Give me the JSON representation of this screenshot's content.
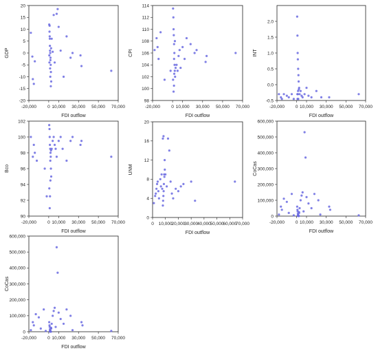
{
  "chart_data": [
    {
      "type": "scatter",
      "xlabel": "FDI outflow",
      "ylabel": "GDP",
      "xlim": [
        -20000,
        70000
      ],
      "ylim": [
        -20,
        20
      ],
      "xticks": [
        -20000,
        0,
        10000,
        30000,
        50000,
        70000
      ],
      "xtick_labels": [
        "-20,000",
        "0",
        "10,000",
        "30,000",
        "50,000",
        "70,000"
      ],
      "yticks": [
        -20,
        -15,
        -10,
        -5,
        0,
        5,
        10,
        15,
        20
      ],
      "ytick_labels": [
        "-20",
        "-15",
        "-10",
        "-5",
        "0",
        "5",
        "10",
        "15",
        "20"
      ],
      "x": [
        -18000,
        -16500,
        -16000,
        -15000,
        -14000,
        500,
        800,
        1000,
        1200,
        1500,
        1800,
        2000,
        2200,
        2500,
        900,
        1100,
        1300,
        1700,
        1400,
        1600,
        2100,
        2400,
        600,
        700,
        5000,
        8000,
        9000,
        10000,
        12000,
        15000,
        18000,
        22000,
        24000,
        32000,
        33000,
        63000,
        3000,
        4000,
        6000
      ],
      "y": [
        8.5,
        -1.5,
        -11,
        -13,
        -3.5,
        12,
        9,
        7,
        3,
        0,
        -2,
        -5,
        -8,
        -12,
        11.5,
        6,
        1,
        -3,
        -6.5,
        -10,
        -14,
        2,
        -1,
        -4,
        16,
        16.5,
        18.5,
        11,
        1,
        -10,
        7,
        -2,
        0,
        -1,
        -5.5,
        -7.5,
        6,
        0.5,
        -4
      ],
      "grid": false
    },
    {
      "type": "scatter",
      "xlabel": "FDI outflow",
      "ylabel": "CPI",
      "xlim": [
        -20000,
        70000
      ],
      "ylim": [
        98,
        114
      ],
      "xticks": [
        -20000,
        0,
        10000,
        30000,
        50000,
        70000
      ],
      "xtick_labels": [
        "-20,000",
        "0",
        "10,000",
        "30,000",
        "50,000",
        "70,000"
      ],
      "yticks": [
        98,
        100,
        102,
        104,
        106,
        108,
        110,
        112,
        114
      ],
      "ytick_labels": [
        "98",
        "100",
        "102",
        "104",
        "106",
        "108",
        "110",
        "112",
        "114"
      ],
      "x": [
        -18000,
        -16000,
        -15000,
        -14000,
        -12000,
        -8000,
        -2000,
        500,
        800,
        1000,
        1200,
        1500,
        1800,
        2000,
        2200,
        2500,
        1000,
        1400,
        1700,
        2300,
        3000,
        4000,
        5000,
        6000,
        7000,
        8000,
        10000,
        12000,
        14000,
        18000,
        22000,
        24000,
        33000,
        34000,
        63000,
        500,
        1500
      ],
      "y": [
        106.5,
        108.5,
        107,
        105,
        109.5,
        101.5,
        103,
        113.5,
        112,
        110,
        109,
        107.5,
        106,
        104,
        103,
        102,
        99.5,
        100.5,
        102.5,
        108,
        103.5,
        104,
        103,
        105.5,
        106.5,
        103.5,
        107,
        105,
        108.5,
        107.5,
        106,
        106.5,
        104.5,
        105.5,
        106,
        101.5,
        105
      ],
      "grid": false
    },
    {
      "type": "scatter",
      "xlabel": "FDI outflow",
      "ylabel": "INT",
      "xlim": [
        -20000,
        70000
      ],
      "ylim": [
        -0.5,
        2.5
      ],
      "xticks": [
        -20000,
        0,
        10000,
        30000,
        50000,
        70000
      ],
      "xtick_labels": [
        "-20,000",
        "0",
        "10,000",
        "30,000",
        "50,000",
        "70,000"
      ],
      "yticks": [
        -0.5,
        0.0,
        0.5,
        1.0,
        1.5,
        2.0
      ],
      "ytick_labels": [
        "-0.5",
        "0.0",
        "0.5",
        "1.0",
        "1.5",
        "2.0"
      ],
      "x": [
        -18000,
        -16000,
        -15000,
        -13000,
        -10000,
        -8000,
        -5000,
        -3000,
        500,
        800,
        1000,
        1200,
        1500,
        1800,
        2000,
        2500,
        3000,
        4000,
        5000,
        6000,
        8000,
        10000,
        12000,
        15000,
        20000,
        25000,
        33000,
        63000,
        1200,
        1400,
        1600,
        2200,
        700,
        900
      ],
      "y": [
        -0.3,
        -0.4,
        -0.45,
        -0.3,
        -0.35,
        -0.4,
        -0.3,
        -0.45,
        2.15,
        1.55,
        1.0,
        0.8,
        0.5,
        0.3,
        0.1,
        -0.1,
        -0.3,
        -0.2,
        -0.35,
        -0.4,
        -0.3,
        -0.1,
        -0.35,
        -0.4,
        -0.2,
        -0.4,
        -0.4,
        -0.3,
        -0.3,
        -0.2,
        -0.45,
        -0.15,
        -0.3,
        -0.45
      ],
      "grid": false
    },
    {
      "type": "scatter",
      "xlabel": "FDI outflow",
      "ylabel": "Bco",
      "xlim": [
        -20000,
        70000
      ],
      "ylim": [
        90,
        102
      ],
      "xticks": [
        -20000,
        0,
        10000,
        30000,
        50000,
        70000
      ],
      "xtick_labels": [
        "-20,000",
        "0",
        "10,000",
        "30,000",
        "50,000",
        "70,000"
      ],
      "yticks": [
        90,
        92,
        94,
        96,
        98,
        100,
        102
      ],
      "ytick_labels": [
        "90",
        "92",
        "94",
        "96",
        "98",
        "100",
        "102"
      ],
      "x": [
        -18000,
        -16000,
        -15000,
        -14000,
        -12000,
        -4000,
        -2000,
        500,
        800,
        1000,
        1200,
        1500,
        1800,
        2000,
        2200,
        2500,
        1000,
        1300,
        1700,
        2300,
        3000,
        4000,
        5000,
        6000,
        7000,
        8000,
        10000,
        12000,
        14000,
        18000,
        22000,
        24000,
        32000,
        33000,
        63000,
        600,
        1600
      ],
      "y": [
        100,
        97.5,
        99,
        98,
        97,
        96,
        92.5,
        101.5,
        101,
        100,
        99,
        98.5,
        98,
        97.5,
        96,
        95,
        91,
        92.5,
        94.5,
        98.3,
        98.5,
        99.5,
        100,
        99,
        98.5,
        97.5,
        99.5,
        100,
        98.5,
        97,
        99.5,
        100,
        99,
        99.5,
        97.5,
        93.5,
        97
      ],
      "grid": false
    },
    {
      "type": "scatter",
      "xlabel": "FDI outflow",
      "ylabel": "UNM",
      "xlim": [
        0,
        70000
      ],
      "ylim": [
        0,
        20
      ],
      "xticks": [
        0,
        10000,
        20000,
        30000,
        40000,
        50000,
        60000,
        70000
      ],
      "xtick_labels": [
        "0",
        "10,000",
        "20,000",
        "30,000",
        "40,000",
        "50,000",
        "60,000",
        "70,000"
      ],
      "yticks": [
        0,
        4,
        8,
        12,
        16,
        20
      ],
      "ytick_labels": [
        "0",
        "4",
        "8",
        "12",
        "16",
        "20"
      ],
      "x": [
        1000,
        2000,
        2500,
        3000,
        3500,
        4000,
        4500,
        5000,
        6000,
        6500,
        7000,
        7500,
        8000,
        8500,
        9000,
        9500,
        8000,
        8200,
        8400,
        8600,
        8800,
        9200,
        9400,
        10000,
        11000,
        12000,
        13000,
        14000,
        15000,
        16000,
        18000,
        20000,
        22000,
        24000,
        30000,
        33000,
        64000
      ],
      "y": [
        3,
        4.5,
        5,
        6,
        7,
        7.5,
        5.5,
        4,
        8,
        6.5,
        9,
        6,
        16.5,
        17,
        9,
        10,
        2.5,
        3.5,
        4.5,
        5.5,
        7,
        8.5,
        12,
        9,
        6.5,
        16.5,
        14,
        7.5,
        5,
        4,
        6,
        5.5,
        6.5,
        7,
        7.5,
        3.5,
        7.5
      ],
      "grid": false
    },
    {
      "type": "scatter",
      "xlabel": "FDI outflow",
      "ylabel": "CoCas",
      "xlim": [
        -20000,
        70000
      ],
      "ylim": [
        0,
        600000
      ],
      "xticks": [
        -20000,
        0,
        10000,
        30000,
        50000,
        70000
      ],
      "xtick_labels": [
        "-20,000",
        "0",
        "10,000",
        "30,000",
        "50,000",
        "70,000"
      ],
      "yticks": [
        0,
        100000,
        200000,
        300000,
        400000,
        500000,
        600000
      ],
      "ytick_labels": [
        "0",
        "100,000",
        "200,000",
        "300,000",
        "400,000",
        "500,000",
        "600,000"
      ],
      "x": [
        -18000,
        -16000,
        -15000,
        -13000,
        -10000,
        -8000,
        -5000,
        -3000,
        500,
        800,
        1000,
        1200,
        1500,
        1800,
        2000,
        2200,
        2500,
        3000,
        4000,
        5000,
        6000,
        7000,
        8000,
        9000,
        10000,
        12000,
        15000,
        18000,
        22000,
        24000,
        33000,
        34000,
        63000,
        1100,
        1400,
        1700,
        2400
      ],
      "y": [
        10000,
        60000,
        40000,
        110000,
        90000,
        20000,
        140000,
        5000,
        60000,
        40000,
        30000,
        15000,
        8000,
        3000,
        1000,
        500,
        20000,
        50000,
        100000,
        130000,
        150000,
        30000,
        530000,
        370000,
        120000,
        80000,
        50000,
        140000,
        100000,
        10000,
        60000,
        40000,
        5000,
        2000,
        1000,
        1500,
        25000
      ],
      "grid": false
    },
    {
      "type": "scatter",
      "xlabel": "FDI outflow",
      "ylabel": "CoCas",
      "xlim": [
        -20000,
        70000
      ],
      "ylim": [
        0,
        600000
      ],
      "xticks": [
        -20000,
        0,
        10000,
        30000,
        50000,
        70000
      ],
      "xtick_labels": [
        "-20,000",
        "0",
        "10,000",
        "30,000",
        "50,000",
        "70,000"
      ],
      "yticks": [
        0,
        100000,
        200000,
        300000,
        400000,
        500000,
        600000
      ],
      "ytick_labels": [
        "0",
        "100,000",
        "200,000",
        "300,000",
        "400,000",
        "500,000",
        "600,000"
      ],
      "x": [
        -18000,
        -16000,
        -15000,
        -13000,
        -10000,
        -8000,
        -5000,
        -3000,
        500,
        800,
        1000,
        1200,
        1500,
        1800,
        2000,
        2200,
        2500,
        3000,
        4000,
        5000,
        6000,
        7000,
        8000,
        9000,
        10000,
        12000,
        15000,
        18000,
        22000,
        24000,
        33000,
        34000,
        63000,
        1100,
        1400,
        1700,
        2400
      ],
      "y": [
        10000,
        60000,
        40000,
        110000,
        90000,
        20000,
        140000,
        5000,
        60000,
        40000,
        30000,
        15000,
        8000,
        3000,
        1000,
        500,
        20000,
        50000,
        100000,
        130000,
        150000,
        30000,
        530000,
        370000,
        120000,
        80000,
        50000,
        140000,
        100000,
        10000,
        60000,
        40000,
        5000,
        2000,
        1000,
        1500,
        25000
      ],
      "grid": false
    }
  ],
  "colors": {
    "point": "#6a6ae0",
    "axis": "#222222"
  }
}
